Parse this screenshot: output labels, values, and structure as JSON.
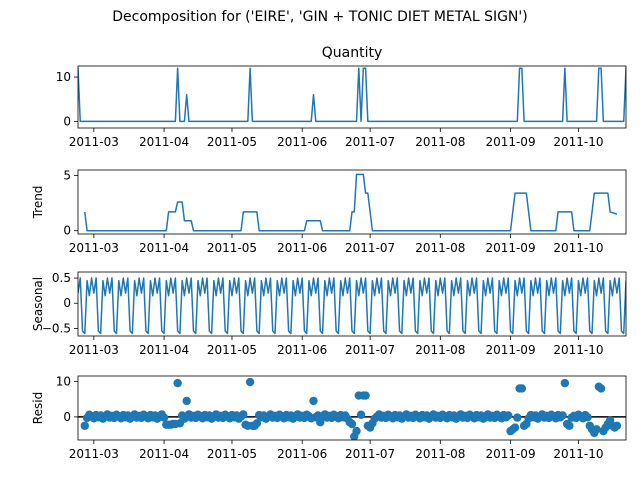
{
  "figure": {
    "suptitle": "Decomposition for ('EIRE', 'GIN + TONIC DIET METAL SIGN')",
    "line_color": "#1f77b4"
  },
  "chart_data": [
    {
      "type": "line",
      "title": "Quantity",
      "ylabel": "",
      "xlim": [
        "2011-02-22",
        "2011-10-22"
      ],
      "ylim": [
        -1.5,
        12.5
      ],
      "xticks": [
        "2011-03",
        "2011-04",
        "2011-05",
        "2011-06",
        "2011-07",
        "2011-08",
        "2011-09",
        "2011-10"
      ],
      "yticks": [
        0,
        10
      ],
      "points": [
        [
          "2011-02-22",
          12
        ],
        [
          "2011-02-23",
          0
        ],
        [
          "2011-04-06",
          0
        ],
        [
          "2011-04-07",
          12
        ],
        [
          "2011-04-08",
          0
        ],
        [
          "2011-04-10",
          0
        ],
        [
          "2011-04-11",
          6
        ],
        [
          "2011-04-12",
          0
        ],
        [
          "2011-05-08",
          0
        ],
        [
          "2011-05-09",
          12
        ],
        [
          "2011-05-10",
          0
        ],
        [
          "2011-06-05",
          0
        ],
        [
          "2011-06-06",
          6
        ],
        [
          "2011-06-07",
          0
        ],
        [
          "2011-06-25",
          0
        ],
        [
          "2011-06-26",
          12
        ],
        [
          "2011-06-27",
          0
        ],
        [
          "2011-06-28",
          12
        ],
        [
          "2011-06-29",
          12
        ],
        [
          "2011-06-30",
          0
        ],
        [
          "2011-09-04",
          0
        ],
        [
          "2011-09-05",
          12
        ],
        [
          "2011-09-06",
          12
        ],
        [
          "2011-09-07",
          0
        ],
        [
          "2011-09-24",
          0
        ],
        [
          "2011-09-25",
          12
        ],
        [
          "2011-09-26",
          0
        ],
        [
          "2011-10-09",
          0
        ],
        [
          "2011-10-10",
          12
        ],
        [
          "2011-10-11",
          12
        ],
        [
          "2011-10-12",
          0
        ],
        [
          "2011-10-21",
          0
        ],
        [
          "2011-10-22",
          12
        ]
      ]
    },
    {
      "type": "line",
      "title": "",
      "ylabel": "Trend",
      "xlim": [
        "2011-02-22",
        "2011-10-22"
      ],
      "ylim": [
        -0.3,
        5.5
      ],
      "xticks": [
        "2011-03",
        "2011-04",
        "2011-05",
        "2011-06",
        "2011-07",
        "2011-08",
        "2011-09",
        "2011-10"
      ],
      "yticks": [
        0,
        5
      ],
      "points": [
        [
          "2011-02-25",
          1.7
        ],
        [
          "2011-02-26",
          0
        ],
        [
          "2011-04-02",
          0
        ],
        [
          "2011-04-03",
          1.7
        ],
        [
          "2011-04-06",
          1.7
        ],
        [
          "2011-04-07",
          2.6
        ],
        [
          "2011-04-09",
          2.6
        ],
        [
          "2011-04-10",
          0.9
        ],
        [
          "2011-04-13",
          0.9
        ],
        [
          "2011-04-14",
          0
        ],
        [
          "2011-05-05",
          0
        ],
        [
          "2011-05-06",
          1.7
        ],
        [
          "2011-05-12",
          1.7
        ],
        [
          "2011-05-13",
          0
        ],
        [
          "2011-06-02",
          0
        ],
        [
          "2011-06-03",
          0.9
        ],
        [
          "2011-06-09",
          0.9
        ],
        [
          "2011-06-10",
          0
        ],
        [
          "2011-06-22",
          0
        ],
        [
          "2011-06-23",
          1.7
        ],
        [
          "2011-06-24",
          1.7
        ],
        [
          "2011-06-25",
          5.1
        ],
        [
          "2011-06-28",
          5.1
        ],
        [
          "2011-06-29",
          3.4
        ],
        [
          "2011-06-30",
          3.4
        ],
        [
          "2011-07-02",
          0
        ],
        [
          "2011-09-01",
          0
        ],
        [
          "2011-09-03",
          3.4
        ],
        [
          "2011-09-08",
          3.4
        ],
        [
          "2011-09-10",
          0
        ],
        [
          "2011-09-21",
          0
        ],
        [
          "2011-09-22",
          1.7
        ],
        [
          "2011-09-28",
          1.7
        ],
        [
          "2011-09-29",
          0
        ],
        [
          "2011-10-06",
          0
        ],
        [
          "2011-10-08",
          3.4
        ],
        [
          "2011-10-14",
          3.4
        ],
        [
          "2011-10-15",
          1.7
        ],
        [
          "2011-10-18",
          1.5
        ]
      ]
    },
    {
      "type": "line",
      "title": "",
      "ylabel": "Seasonal",
      "xlim": [
        "2011-02-22",
        "2011-10-22"
      ],
      "ylim": [
        -0.65,
        0.62
      ],
      "xticks": [
        "2011-03",
        "2011-04",
        "2011-05",
        "2011-06",
        "2011-07",
        "2011-08",
        "2011-09",
        "2011-10"
      ],
      "yticks": [
        -0.5,
        0.0,
        0.5
      ],
      "period": 7,
      "start": "2011-02-22",
      "end": "2011-10-22",
      "cycle": [
        0.2,
        0.5,
        -0.55,
        -0.6,
        0.45,
        0.15,
        0.5
      ]
    },
    {
      "type": "scatter",
      "title": "",
      "ylabel": "Resid",
      "xlim": [
        "2011-02-22",
        "2011-10-22"
      ],
      "ylim": [
        -6.5,
        11.5
      ],
      "xticks": [
        "2011-03",
        "2011-04",
        "2011-05",
        "2011-06",
        "2011-07",
        "2011-08",
        "2011-09",
        "2011-10"
      ],
      "yticks": [
        0,
        10
      ],
      "zero_line": true,
      "baseline_cycle": [
        0.3,
        -0.3,
        0.6,
        0.2,
        -0.4,
        0.5,
        -0.1,
        0.4,
        -0.5,
        0.1,
        0.7,
        -0.2
      ],
      "overrides": [
        [
          "2011-02-25",
          -2.5
        ],
        [
          "2011-04-02",
          -2.2
        ],
        [
          "2011-04-03",
          -2.2
        ],
        [
          "2011-04-04",
          -2.2
        ],
        [
          "2011-04-05",
          -2.0
        ],
        [
          "2011-04-06",
          -2.0
        ],
        [
          "2011-04-07",
          9.5
        ],
        [
          "2011-04-08",
          -1.8
        ],
        [
          "2011-04-11",
          4.5
        ],
        [
          "2011-05-07",
          -2.2
        ],
        [
          "2011-05-08",
          -2.5
        ],
        [
          "2011-05-09",
          9.8
        ],
        [
          "2011-05-10",
          -2.5
        ],
        [
          "2011-05-11",
          -2.5
        ],
        [
          "2011-05-12",
          -1.8
        ],
        [
          "2011-06-06",
          4.5
        ],
        [
          "2011-06-09",
          -1.5
        ],
        [
          "2011-06-22",
          -1.5
        ],
        [
          "2011-06-23",
          -2.0
        ],
        [
          "2011-06-24",
          -5.5
        ],
        [
          "2011-06-25",
          -4.0
        ],
        [
          "2011-06-26",
          6.0
        ],
        [
          "2011-06-28",
          6.0
        ],
        [
          "2011-06-29",
          6.0
        ],
        [
          "2011-06-30",
          -2.5
        ],
        [
          "2011-07-01",
          -3.0
        ],
        [
          "2011-07-02",
          -1.8
        ],
        [
          "2011-09-01",
          -4.0
        ],
        [
          "2011-09-02",
          -3.5
        ],
        [
          "2011-09-03",
          -3.0
        ],
        [
          "2011-09-05",
          8.0
        ],
        [
          "2011-09-06",
          8.0
        ],
        [
          "2011-09-07",
          -2.5
        ],
        [
          "2011-09-08",
          -2.0
        ],
        [
          "2011-09-25",
          9.5
        ],
        [
          "2011-09-26",
          -2.0
        ],
        [
          "2011-09-27",
          -2.5
        ],
        [
          "2011-10-06",
          -2.5
        ],
        [
          "2011-10-07",
          -3.5
        ],
        [
          "2011-10-08",
          -4.5
        ],
        [
          "2011-10-09",
          -3.5
        ],
        [
          "2011-10-10",
          8.5
        ],
        [
          "2011-10-11",
          8.0
        ],
        [
          "2011-10-12",
          -4.0
        ],
        [
          "2011-10-13",
          -3.0
        ],
        [
          "2011-10-14",
          -2.0
        ],
        [
          "2011-10-15",
          -1.0
        ],
        [
          "2011-10-16",
          -2.5
        ],
        [
          "2011-10-17",
          -3.0
        ],
        [
          "2011-10-18",
          -2.5
        ]
      ]
    }
  ]
}
